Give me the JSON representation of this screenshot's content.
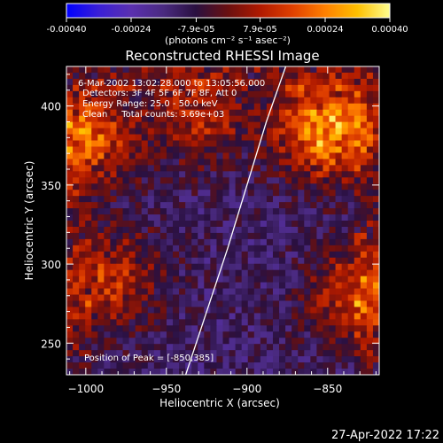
{
  "colorbar": {
    "tick_labels": [
      "-0.00040",
      "-0.00024",
      "-7.9e-05",
      "7.9e-05",
      "0.00024",
      "0.00040"
    ],
    "tick_values": [
      -0.0004,
      -0.00024,
      -7.9e-05,
      7.9e-05,
      0.00024,
      0.0004
    ],
    "range": [
      -0.0004,
      0.0004
    ],
    "units_label": "(photons cm⁻² s⁻¹ asec⁻²)",
    "colors": [
      "#0000ff",
      "#3a1fd6",
      "#5a30b0",
      "#4a2a80",
      "#2a1040",
      "#6a1010",
      "#b01a00",
      "#e04000",
      "#ff8000",
      "#ffc000",
      "#ffff90"
    ]
  },
  "chart_data": {
    "type": "heatmap",
    "title": "Reconstructed RHESSI Image",
    "xlabel": "Heliocentric X (arcsec)",
    "ylabel": "Heliocentric Y (arcsec)",
    "xlim": [
      -1012,
      -818
    ],
    "ylim": [
      230,
      425
    ],
    "x_ticks": [
      -1000,
      -950,
      -900,
      -850
    ],
    "y_ticks": [
      250,
      300,
      350,
      400
    ],
    "x_tick_labels": [
      "−1000",
      "−950",
      "−900",
      "−850"
    ],
    "y_tick_labels": [
      "250",
      "300",
      "350",
      "400"
    ],
    "limb_line": {
      "x": [
        -938,
        -925,
        -912,
        -900,
        -888,
        -876
      ],
      "y": [
        230,
        270,
        310,
        350,
        390,
        425
      ]
    },
    "bright_regions": [
      {
        "x": -850,
        "y": 385,
        "intensity": 0.0004
      },
      {
        "x": -1000,
        "y": 380,
        "intensity": 0.00028
      },
      {
        "x": -985,
        "y": 290,
        "intensity": 0.00022
      },
      {
        "x": -830,
        "y": 280,
        "intensity": 0.00025
      },
      {
        "x": -930,
        "y": 395,
        "intensity": 0.0002
      }
    ],
    "annotations": [
      "6-Mar-2002 13:02:28.000 to 13:05:56.000",
      "Detectors: 3F 4F 5F 6F 7F 8F, Att 0",
      "Energy Range: 25.0 - 50.0 keV",
      "Clean     Total counts: 3.69e+03",
      "Position of Peak = [-850,385]"
    ]
  },
  "footer": {
    "timestamp": "27-Apr-2022 17:22"
  }
}
